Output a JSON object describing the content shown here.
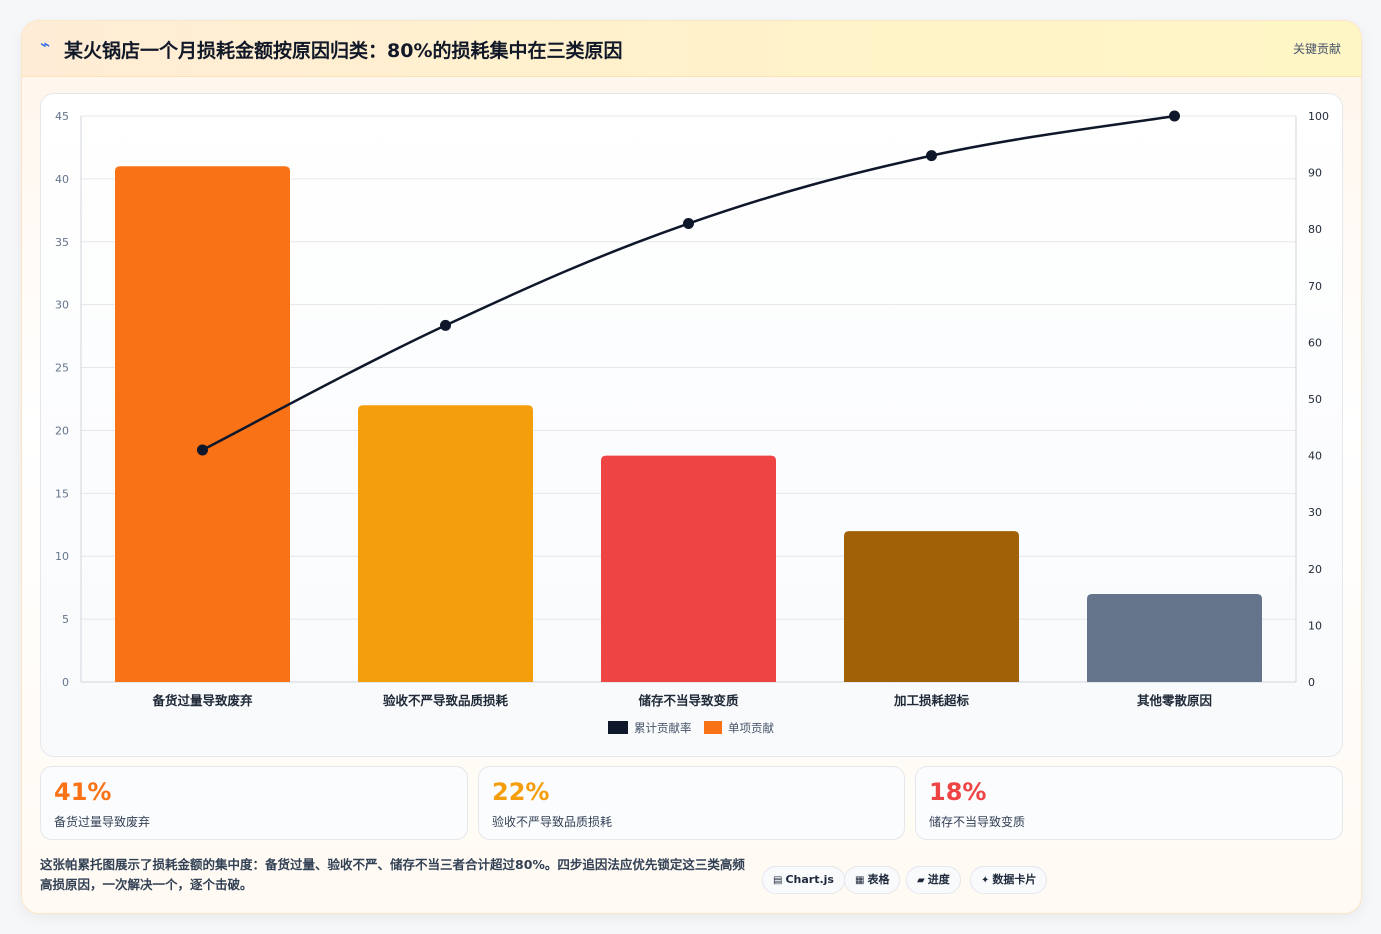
{
  "header": {
    "icon": "lightning-icon",
    "title": "某火锅店一个月损耗金额按原因归类：80%的损耗集中在三类原因",
    "tag": "关键贡献"
  },
  "chart_data": {
    "type": "bar",
    "categories": [
      "备货过量导致废弃",
      "验收不严导致品质损耗",
      "储存不当导致变质",
      "加工损耗超标",
      "其他零散原因"
    ],
    "series": [
      {
        "name": "单项贡献",
        "type": "bar",
        "axis": "left",
        "values": [
          41,
          22,
          18,
          12,
          7
        ],
        "colors": [
          "#f97316",
          "#f59e0b",
          "#ef4444",
          "#a16207",
          "#64748b"
        ]
      },
      {
        "name": "累计贡献率",
        "type": "line",
        "axis": "right",
        "values": [
          41,
          63,
          81,
          93,
          100
        ],
        "color": "#0f172a"
      }
    ],
    "y_left": {
      "min": 0,
      "max": 45,
      "step": 5
    },
    "y_right": {
      "min": 0,
      "max": 100,
      "step": 10
    },
    "legend": {
      "placement": "bottom",
      "items": [
        {
          "label": "累计贡献率",
          "color": "#0f172a"
        },
        {
          "label": "单项贡献",
          "color": "#f97316"
        }
      ]
    },
    "grid": true
  },
  "stats": [
    {
      "value": "41%",
      "label": "备货过量导致废弃",
      "color": "#f97316"
    },
    {
      "value": "22%",
      "label": "验收不严导致品质损耗",
      "color": "#f59e0b"
    },
    {
      "value": "18%",
      "label": "储存不当导致变质",
      "color": "#ef4444"
    }
  ],
  "note": "这张帕累托图展示了损耗金额的集中度：备货过量、验收不严、储存不当三者合计超过80%。四步追因法应优先锁定这三类高频高损原因，一次解决一个，逐个击破。",
  "chips": [
    {
      "icon": "chart-icon",
      "glyph": "▤",
      "label": "Chart.js"
    },
    {
      "icon": "table-icon",
      "glyph": "▦",
      "label": "表格"
    },
    {
      "icon": "progress-icon",
      "glyph": "▰",
      "label": "进度"
    },
    {
      "icon": "data-card-icon",
      "glyph": "✦",
      "label": "数据卡片"
    }
  ]
}
